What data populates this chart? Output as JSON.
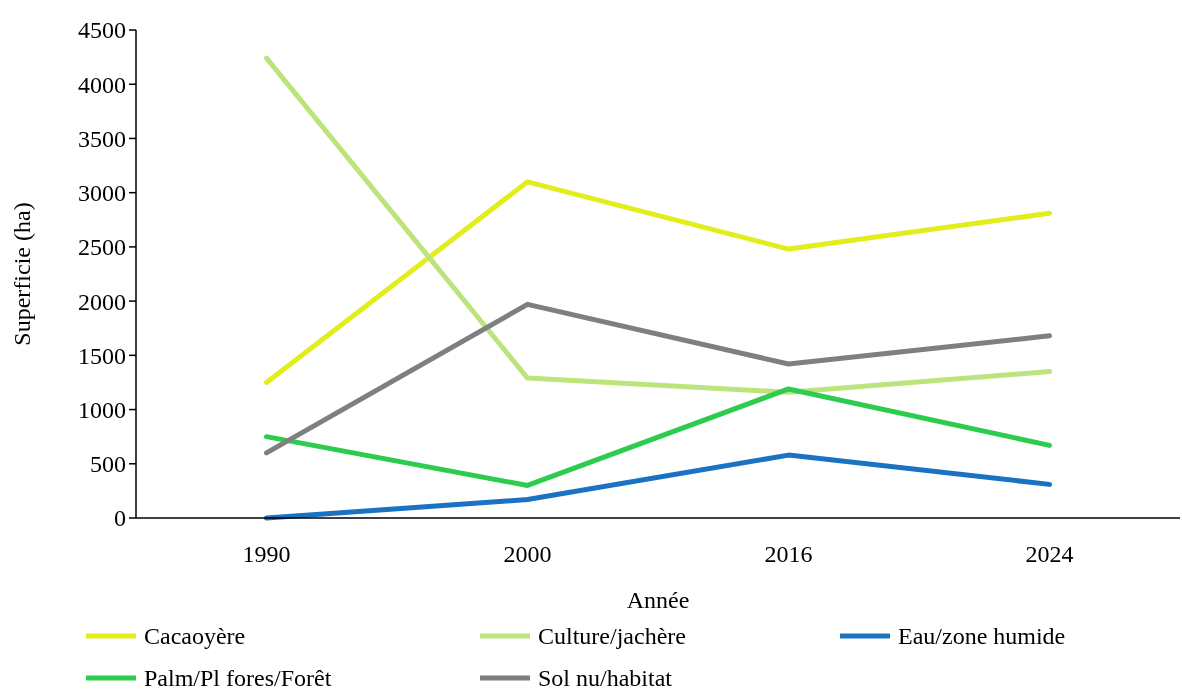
{
  "chart_data": {
    "type": "line",
    "xlabel": "Année",
    "ylabel": "Superficie (ha)",
    "categories": [
      "1990",
      "2000",
      "2016",
      "2024"
    ],
    "ylim": [
      0,
      4500
    ],
    "yticks": [
      0,
      500,
      1000,
      1500,
      2000,
      2500,
      3000,
      3500,
      4000,
      4500
    ],
    "grid": false,
    "legend": "bottom",
    "marker": "none",
    "line_style": "solid",
    "series": [
      {
        "name": "Cacaoyère",
        "color": "#e2ee1c",
        "values": [
          1250,
          3100,
          2480,
          2810
        ]
      },
      {
        "name": "Culture/jachère",
        "color": "#bde47c",
        "values": [
          4240,
          1290,
          1160,
          1350
        ]
      },
      {
        "name": "Eau/zone humide",
        "color": "#1a72c2",
        "values": [
          0,
          170,
          580,
          310
        ]
      },
      {
        "name": "Palm/Pl fores/Forêt",
        "color": "#2ecc4e",
        "values": [
          750,
          300,
          1190,
          670
        ]
      },
      {
        "name": "Sol nu/habitat",
        "color": "#7f7f7f",
        "values": [
          600,
          1970,
          1420,
          1680
        ]
      }
    ]
  }
}
